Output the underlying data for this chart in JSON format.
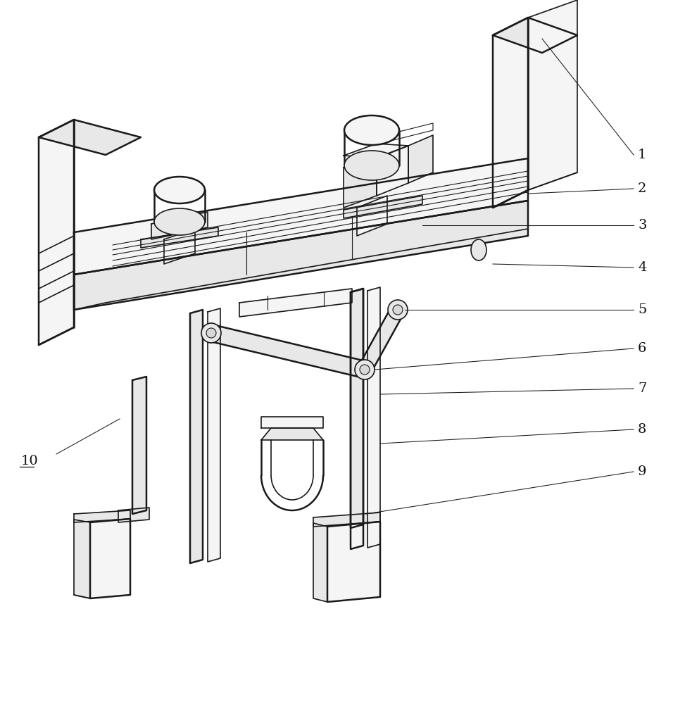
{
  "bg_color": "#ffffff",
  "line_color": "#1a1a1a",
  "lw_bold": 1.8,
  "lw_med": 1.2,
  "lw_thin": 0.8,
  "lw_leader": 0.75,
  "label_fontsize": 14,
  "fig_width": 9.73,
  "fig_height": 10.0,
  "dpi": 100,
  "fill_light": "#f5f5f5",
  "fill_mid": "#e8e8e8",
  "fill_dark": "#d8d8d8"
}
